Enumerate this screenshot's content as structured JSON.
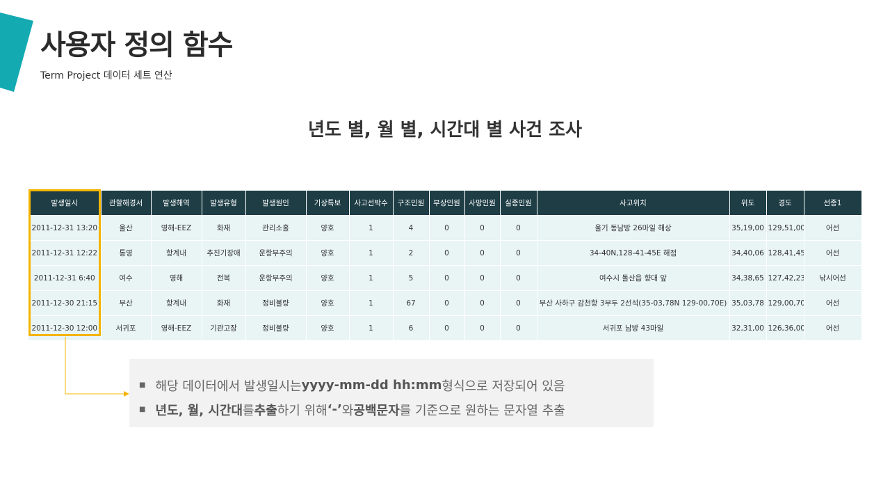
{
  "slide": {
    "title": "사용자 정의 함수",
    "subtitle": "Term Project 데이터 세트 연산",
    "accent_color": "#13aab2",
    "highlight_color": "#f4b400"
  },
  "section": {
    "heading": "년도 별, 월 별, 시간대 별 사건 조사"
  },
  "table": {
    "header_bg": "#1e3d45",
    "row_bg": "#e9f4f4",
    "columns": [
      "발생일시",
      "관할해경서",
      "발생해역",
      "발생유형",
      "발생원인",
      "기상특보",
      "사고선박수",
      "구조인원",
      "부상인원",
      "사망인원",
      "실종인원",
      "사고위치",
      "위도",
      "경도",
      "선종1"
    ],
    "rows": [
      [
        "2011-12-31 13:20",
        "울산",
        "영해-EEZ",
        "화재",
        "관리소홀",
        "양호",
        "1",
        "4",
        "0",
        "0",
        "0",
        "울기 동남방 26마일 해상",
        "35,19,00",
        "129,51,00",
        "어선"
      ],
      [
        "2011-12-31 12:22",
        "통영",
        "항계내",
        "추진기장애",
        "운항부주의",
        "양호",
        "1",
        "2",
        "0",
        "0",
        "0",
        "34-40N,128-41-45E 해점",
        "34,40,06",
        "128,41,45",
        "어선"
      ],
      [
        "2011-12-31 6:40",
        "여수",
        "영해",
        "전복",
        "운항부주의",
        "양호",
        "1",
        "5",
        "0",
        "0",
        "0",
        "여수시 돌산읍 향대 앞",
        "34,38,65",
        "127,42,23",
        "낚시어선"
      ],
      [
        "2011-12-30 21:15",
        "부산",
        "항계내",
        "화재",
        "정비불량",
        "양호",
        "1",
        "67",
        "0",
        "0",
        "0",
        "부산 사하구 감천항 3부두 2선석(35-03,78N 129-00,70E)",
        "35,03,78",
        "129,00,70",
        "어선"
      ],
      [
        "2011-12-30 12:00",
        "서귀포",
        "영해-EEZ",
        "기관고장",
        "정비불량",
        "양호",
        "1",
        "6",
        "0",
        "0",
        "0",
        "서귀포 남방 43마일",
        "32,31,00",
        "126,36,00",
        "어선"
      ]
    ]
  },
  "notes": {
    "item1": {
      "pre": "해당 데이터에서 발생일시는 ",
      "format": "yyyy-mm-dd hh:mm",
      "post": " 형식으로 저장되어 있음"
    },
    "item2": {
      "part1": "년도, 월, 시간대",
      "part2": "를 ",
      "part3": "추출",
      "part4": "하기 위해 ",
      "part5": "‘-’",
      "part6": "와 ",
      "part7": "공백문자",
      "part8": "를 기준으로 원하는 문자열 추출"
    }
  }
}
